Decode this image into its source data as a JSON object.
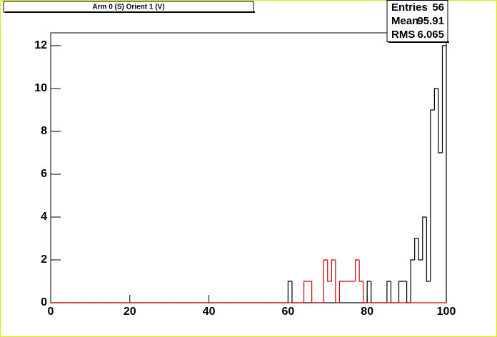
{
  "chart_data": {
    "type": "histogram",
    "title": "Arm 0 (S) Orient 1 (V)",
    "bins": [
      0,
      1,
      2,
      3,
      4,
      5,
      6,
      7,
      8,
      9,
      10,
      11,
      12,
      13,
      14,
      15,
      16,
      17,
      18,
      19,
      20,
      21,
      22,
      23,
      24,
      25,
      26,
      27,
      28,
      29,
      30,
      31,
      32,
      33,
      34,
      35,
      36,
      37,
      38,
      39,
      40,
      41,
      42,
      43,
      44,
      45,
      46,
      47,
      48,
      49,
      50,
      51,
      52,
      53,
      54,
      55,
      56,
      57,
      58,
      59,
      60,
      61,
      62,
      63,
      64,
      65,
      66,
      67,
      68,
      69,
      70,
      71,
      72,
      73,
      74,
      75,
      76,
      77,
      78,
      79,
      80,
      81,
      82,
      83,
      84,
      85,
      86,
      87,
      88,
      89,
      90,
      91,
      92,
      93,
      94,
      95,
      96,
      97,
      98,
      99,
      100
    ],
    "series": [
      {
        "color": "#000000",
        "values": [
          0,
          0,
          0,
          0,
          0,
          0,
          0,
          0,
          0,
          0,
          0,
          0,
          0,
          0,
          0,
          0,
          0,
          0,
          0,
          0,
          0,
          0,
          0,
          0,
          0,
          0,
          0,
          0,
          0,
          0,
          0,
          0,
          0,
          0,
          0,
          0,
          0,
          0,
          0,
          0,
          0,
          0,
          0,
          0,
          0,
          0,
          0,
          0,
          0,
          0,
          0,
          0,
          0,
          0,
          0,
          0,
          0,
          0,
          0,
          0,
          1,
          0,
          0,
          0,
          0,
          0,
          0,
          0,
          0,
          0,
          0,
          0,
          0,
          0,
          0,
          0,
          0,
          0,
          0,
          0,
          1,
          0,
          0,
          0,
          0,
          1,
          0,
          0,
          1,
          1,
          0,
          2,
          3,
          2,
          4,
          1,
          9,
          10,
          7,
          12
        ]
      },
      {
        "color": "#cc0000",
        "values": [
          0,
          0,
          0,
          0,
          0,
          0,
          0,
          0,
          0,
          0,
          0,
          0,
          0,
          0,
          0,
          0,
          0,
          0,
          0,
          0,
          0,
          0,
          0,
          0,
          0,
          0,
          0,
          0,
          0,
          0,
          0,
          0,
          0,
          0,
          0,
          0,
          0,
          0,
          0,
          0,
          0,
          0,
          0,
          0,
          0,
          0,
          0,
          0,
          0,
          0,
          0,
          0,
          0,
          0,
          0,
          0,
          0,
          0,
          0,
          0,
          0,
          0,
          0,
          0,
          1,
          1,
          0,
          0,
          0,
          2,
          1,
          2,
          0,
          1,
          1,
          1,
          1,
          2,
          1,
          0,
          0,
          0,
          0,
          0,
          0,
          0,
          0,
          0,
          0,
          0,
          0,
          0,
          0,
          0,
          0,
          0,
          0,
          0,
          0,
          0
        ]
      }
    ],
    "xlim": [
      0,
      100
    ],
    "xticks": [
      0,
      20,
      40,
      60,
      80,
      100
    ],
    "ylim": [
      0,
      12.6
    ],
    "yticks": [
      0,
      2,
      4,
      6,
      8,
      10,
      12
    ],
    "stats": [
      {
        "label": "Entries",
        "value": 56
      },
      {
        "label": "Mean",
        "value": 95.91
      },
      {
        "label": "RMS",
        "value": 6.065
      }
    ]
  }
}
